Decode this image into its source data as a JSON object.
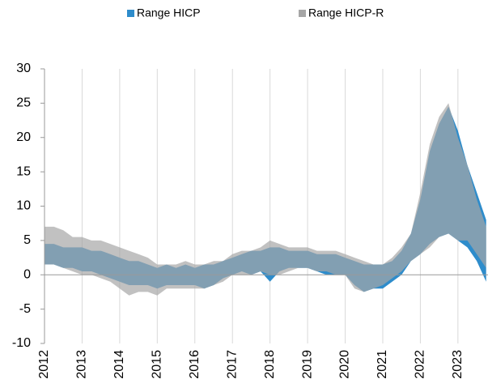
{
  "chart_data": {
    "type": "range-area",
    "x": [
      2012,
      2012.25,
      2012.5,
      2012.75,
      2013,
      2013.25,
      2013.5,
      2013.75,
      2014,
      2014.25,
      2014.5,
      2014.75,
      2015,
      2015.25,
      2015.5,
      2015.75,
      2016,
      2016.25,
      2016.5,
      2016.75,
      2017,
      2017.25,
      2017.5,
      2017.75,
      2018,
      2018.25,
      2018.5,
      2018.75,
      2019,
      2019.25,
      2019.5,
      2019.75,
      2020,
      2020.25,
      2020.5,
      2020.75,
      2021,
      2021.25,
      2021.5,
      2021.75,
      2022,
      2022.25,
      2022.5,
      2022.75,
      2023,
      2023.25,
      2023.5,
      2023.75
    ],
    "series": [
      {
        "name": "Range HICP",
        "color": "#2e8ccb",
        "low": [
          1.5,
          1.5,
          1,
          1,
          0.5,
          0.5,
          0,
          -0.5,
          -1,
          -1.5,
          -1.5,
          -1.5,
          -2,
          -1.5,
          -1.5,
          -1.5,
          -1.5,
          -2,
          -1.5,
          -0.5,
          0,
          0.5,
          0,
          0.5,
          -1,
          0.5,
          1,
          1,
          1,
          0.5,
          0,
          0,
          0,
          -1.5,
          -2.5,
          -2,
          -2,
          -1,
          0,
          2,
          3,
          4.5,
          5.5,
          6,
          5,
          4,
          2,
          -1
        ],
        "high": [
          4.5,
          4.5,
          4,
          4,
          4,
          3.5,
          3.5,
          3,
          2.5,
          2,
          2,
          1.5,
          1,
          1.5,
          1,
          1.5,
          1,
          1.5,
          1.5,
          2,
          2.5,
          3,
          3.5,
          3.5,
          4,
          4,
          3.5,
          3.5,
          3.5,
          3,
          3,
          3,
          2.5,
          2,
          1.5,
          1.5,
          1.5,
          2,
          3.5,
          6,
          11,
          18,
          22,
          24.5,
          21,
          16,
          12,
          8
        ]
      },
      {
        "name": "Range HICP-R",
        "color": "#a6a6a6",
        "low": [
          1.5,
          1.5,
          1,
          0.5,
          0,
          0,
          -0.5,
          -1,
          -2,
          -3,
          -2.5,
          -2.5,
          -3,
          -2,
          -2,
          -2,
          -2,
          -2,
          -1.5,
          -1,
          0,
          0,
          0,
          0.5,
          0,
          0,
          0.5,
          1,
          1,
          0.5,
          0.5,
          0,
          0,
          -2,
          -2.5,
          -2,
          -1.5,
          -0.5,
          0.5,
          2,
          3,
          4,
          5.5,
          6,
          5,
          5,
          3,
          1
        ],
        "high": [
          7,
          7,
          6.5,
          5.5,
          5.5,
          5,
          5,
          4.5,
          4,
          3.5,
          3,
          2.5,
          1.5,
          1.5,
          1.5,
          2,
          1.5,
          1.5,
          2,
          2,
          3,
          3.5,
          3.5,
          4,
          5,
          4.5,
          4,
          4,
          4,
          3.5,
          3.5,
          3.5,
          3,
          2.5,
          2,
          1.5,
          1.5,
          2.5,
          4,
          6,
          12,
          19,
          23,
          25,
          20,
          16,
          11,
          7
        ]
      }
    ],
    "xlim": [
      2012,
      2023.8
    ],
    "xticks": [
      2012,
      2013,
      2014,
      2015,
      2016,
      2017,
      2018,
      2019,
      2020,
      2021,
      2022,
      2023
    ],
    "ylim": [
      -10,
      30
    ],
    "yticks": [
      -10,
      -5,
      0,
      5,
      10,
      15,
      20,
      25,
      30
    ],
    "grid": true,
    "legend": "top"
  }
}
